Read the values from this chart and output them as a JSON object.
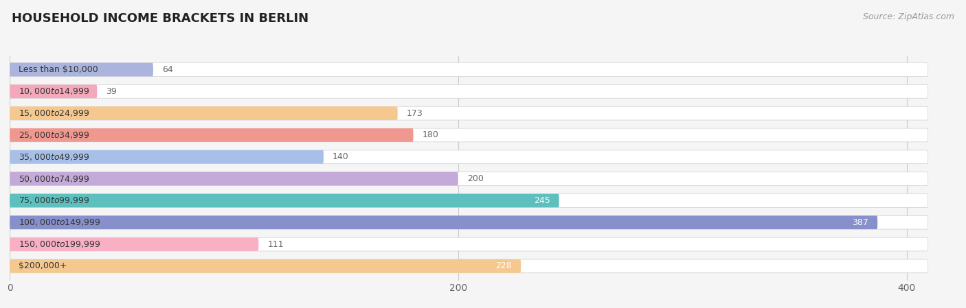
{
  "title": "HOUSEHOLD INCOME BRACKETS IN BERLIN",
  "source": "Source: ZipAtlas.com",
  "categories": [
    "Less than $10,000",
    "$10,000 to $14,999",
    "$15,000 to $24,999",
    "$25,000 to $34,999",
    "$35,000 to $49,999",
    "$50,000 to $74,999",
    "$75,000 to $99,999",
    "$100,000 to $149,999",
    "$150,000 to $199,999",
    "$200,000+"
  ],
  "values": [
    64,
    39,
    173,
    180,
    140,
    200,
    245,
    387,
    111,
    228
  ],
  "bar_colors": [
    "#aab4dd",
    "#f4a8bc",
    "#f5c890",
    "#f09890",
    "#a8c0e8",
    "#c4aad8",
    "#5ebfbf",
    "#8890cc",
    "#f9b0c4",
    "#f5c890"
  ],
  "value_inside_threshold": 220,
  "value_inside_color": "#ffffff",
  "value_outside_color": "#666666",
  "xlim": [
    0,
    420
  ],
  "xticks": [
    0,
    200,
    400
  ],
  "background_color": "#f5f5f5",
  "bar_bg_color": "#e8e8e8",
  "bar_bg_outline_color": "#d0d0d0",
  "title_fontsize": 13,
  "label_fontsize": 9,
  "value_fontsize": 9,
  "tick_fontsize": 10,
  "source_fontsize": 9,
  "grid_color": "#cccccc"
}
